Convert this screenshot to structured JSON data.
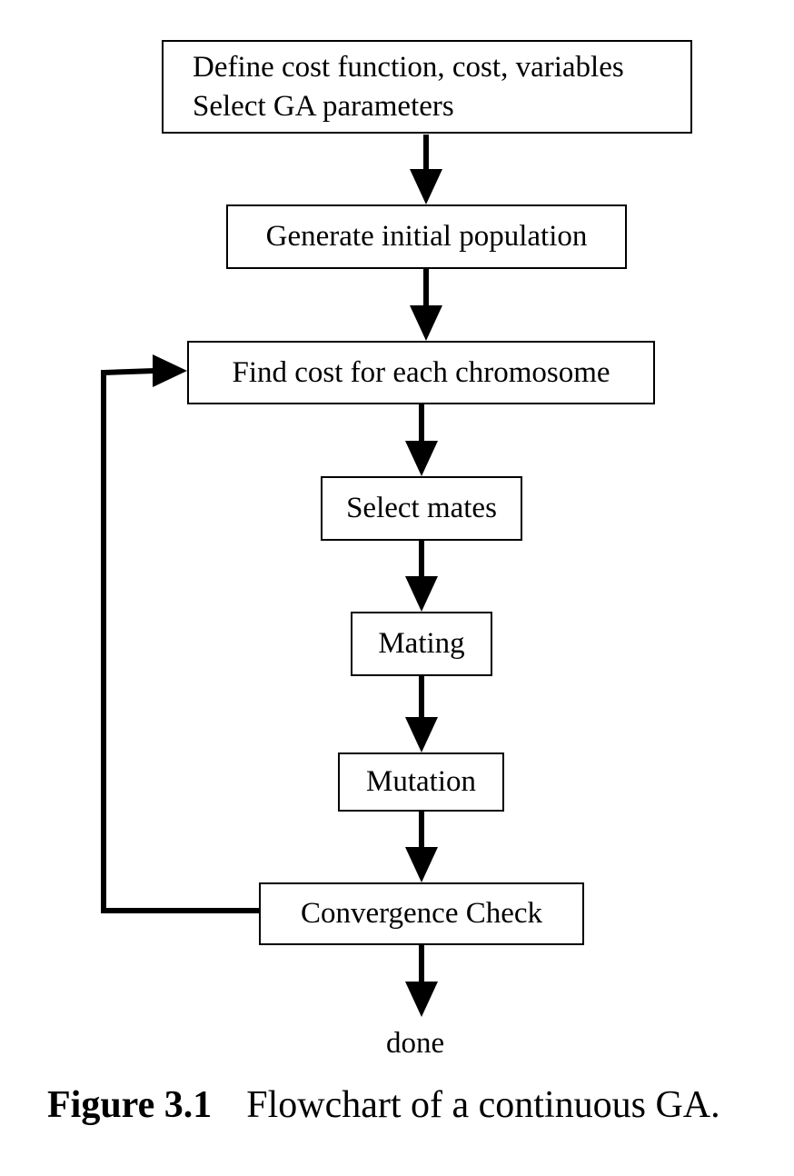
{
  "nodes": {
    "setup": {
      "line1": "Define cost function, cost, variables",
      "line2": "Select GA parameters"
    },
    "init": "Generate initial population",
    "cost": "Find cost for each chromosome",
    "select": "Select mates",
    "mating": "Mating",
    "mutation": "Mutation",
    "converge": "Convergence Check",
    "done": "done"
  },
  "edges": [
    {
      "from": "setup",
      "to": "init"
    },
    {
      "from": "init",
      "to": "cost"
    },
    {
      "from": "cost",
      "to": "select"
    },
    {
      "from": "select",
      "to": "mating"
    },
    {
      "from": "mating",
      "to": "mutation"
    },
    {
      "from": "mutation",
      "to": "converge"
    },
    {
      "from": "converge",
      "to": "done"
    },
    {
      "from": "converge",
      "to": "cost",
      "type": "feedback-loop"
    }
  ],
  "caption": {
    "number": "Figure 3.1",
    "text": "Flowchart of a continuous GA."
  }
}
